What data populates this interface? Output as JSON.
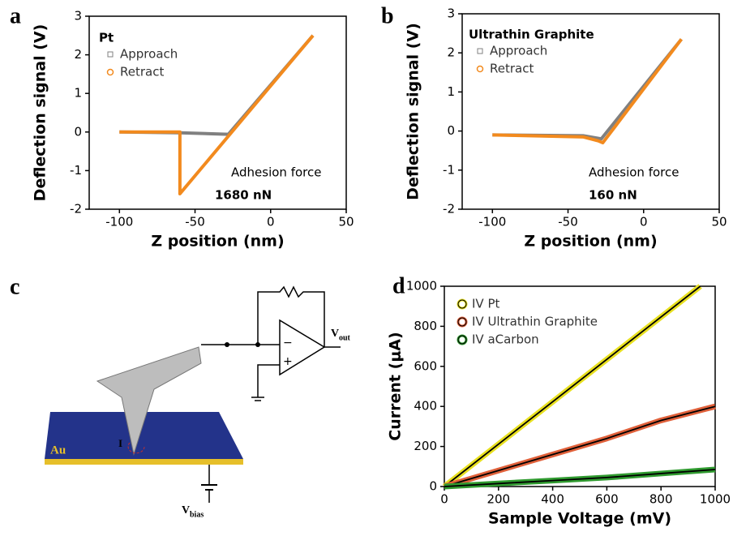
{
  "chart_data": [
    {
      "type": "line",
      "panel": "a",
      "x_label": "Z position (nm)",
      "y_label": "Deflection signal (V)",
      "xlim": [
        -120,
        50
      ],
      "ylim": [
        -2,
        3
      ],
      "xticks": [
        -100,
        -50,
        0,
        50
      ],
      "yticks": [
        -2,
        -1,
        0,
        1,
        2,
        3
      ],
      "legend_title": "Pt",
      "series": [
        {
          "name": "Approach",
          "color": "#808080",
          "marker": "square",
          "x": [
            -100,
            -60,
            -28,
            28
          ],
          "values": [
            0,
            -0.02,
            -0.06,
            2.5
          ]
        },
        {
          "name": "Retract",
          "color": "#f28a1e",
          "marker": "circle",
          "x": [
            -100,
            -60,
            -60,
            28
          ],
          "values": [
            0,
            0,
            -1.6,
            2.5
          ]
        }
      ],
      "annotations": [
        "Adhesion force",
        "1680 nN"
      ]
    },
    {
      "type": "line",
      "panel": "b",
      "x_label": "Z position (nm)",
      "y_label": "Deflection signal (V)",
      "xlim": [
        -120,
        50
      ],
      "ylim": [
        -2,
        3
      ],
      "xticks": [
        -100,
        -50,
        0,
        50
      ],
      "yticks": [
        -2,
        -1,
        0,
        1,
        2,
        3
      ],
      "legend_title": "Ultrathin Graphite",
      "series": [
        {
          "name": "Approach",
          "color": "#808080",
          "marker": "square",
          "x": [
            -100,
            -40,
            -28,
            25
          ],
          "values": [
            -0.1,
            -0.12,
            -0.2,
            2.35
          ]
        },
        {
          "name": "Retract",
          "color": "#f28a1e",
          "marker": "circle",
          "x": [
            -100,
            -40,
            -30,
            -27,
            25
          ],
          "values": [
            -0.1,
            -0.15,
            -0.25,
            -0.3,
            2.35
          ]
        }
      ],
      "annotations": [
        "Adhesion force",
        "160 nN"
      ]
    },
    {
      "type": "line",
      "panel": "d",
      "x_label": "Sample Voltage (mV)",
      "y_label": "Current (μA)",
      "xlim": [
        0,
        1000
      ],
      "ylim": [
        0,
        1000
      ],
      "xticks": [
        0,
        200,
        400,
        600,
        800,
        1000
      ],
      "yticks": [
        0,
        200,
        400,
        600,
        800,
        1000
      ],
      "line_color": "#000000",
      "series": [
        {
          "name": "IV Pt",
          "color": "#e8e020",
          "marker": "circle",
          "x": [
            0,
            945
          ],
          "values": [
            0,
            1000
          ]
        },
        {
          "name": "IV Ultrathin Graphite",
          "color": "#e0603a",
          "marker": "circle",
          "x": [
            0,
            200,
            400,
            600,
            800,
            1000
          ],
          "values": [
            0,
            80,
            160,
            240,
            330,
            400
          ]
        },
        {
          "name": "IV aCarbon",
          "color": "#2f9a2f",
          "marker": "circle",
          "x": [
            0,
            200,
            400,
            600,
            800,
            1000
          ],
          "values": [
            0,
            15,
            30,
            45,
            65,
            85
          ]
        }
      ],
      "annotations": []
    }
  ],
  "diagram": {
    "panel": "c",
    "substrate": "Au",
    "current": "I",
    "minus": "−",
    "plus": "+",
    "v_out": "V",
    "v_out_sub": "out",
    "v_bias": "V",
    "v_bias_sub": "bias"
  }
}
